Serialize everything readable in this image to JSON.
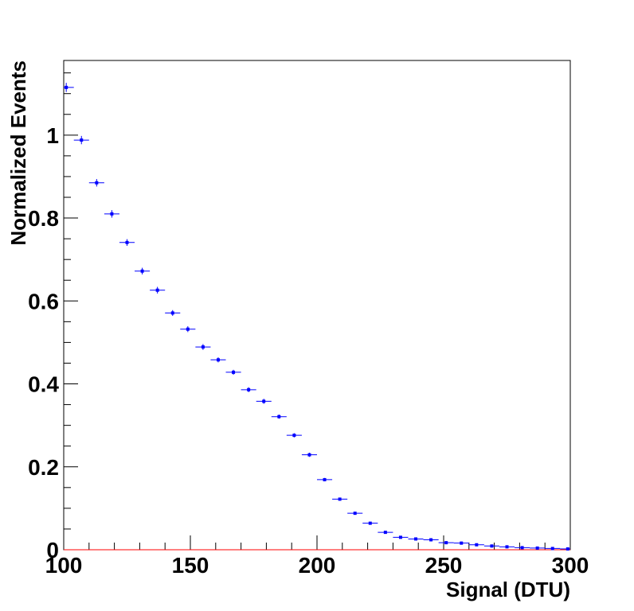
{
  "chart_data": {
    "type": "scatter",
    "title": "",
    "xlabel": "Signal (DTU)",
    "ylabel": "Normalized Events",
    "xlim": [
      100,
      300
    ],
    "ylim": [
      0,
      1.18
    ],
    "x_ticks": [
      "100",
      "150",
      "200",
      "250",
      "300"
    ],
    "y_ticks": [
      "0",
      "0.2",
      "0.4",
      "0.6",
      "0.8",
      "1"
    ],
    "grid": false,
    "legend": "none",
    "bin_width": 6,
    "colors": {
      "markers": "#0000ff",
      "baseline": "#ff0000",
      "frame": "#000000"
    },
    "series": [
      {
        "x": [
          101,
          107,
          113,
          119,
          125,
          131,
          137,
          143,
          149,
          155,
          161,
          167,
          173,
          179,
          185,
          191,
          197,
          203,
          209,
          215,
          221,
          227,
          233,
          239,
          245,
          251,
          257,
          263,
          269,
          275,
          281,
          287,
          293,
          299
        ],
        "y": [
          1.115,
          0.988,
          0.885,
          0.81,
          0.741,
          0.672,
          0.626,
          0.571,
          0.532,
          0.489,
          0.458,
          0.428,
          0.386,
          0.358,
          0.321,
          0.276,
          0.229,
          0.169,
          0.122,
          0.088,
          0.064,
          0.042,
          0.03,
          0.026,
          0.024,
          0.017,
          0.016,
          0.012,
          0.009,
          0.007,
          0.005,
          0.004,
          0.003,
          0.002
        ],
        "yerr": [
          0.011,
          0.01,
          0.009,
          0.009,
          0.008,
          0.008,
          0.008,
          0.007,
          0.007,
          0.007,
          0.006,
          0.006,
          0.006,
          0.006,
          0.005,
          0.005,
          0.005,
          0.004,
          0.003,
          0.003,
          0.003,
          0.002,
          0.002,
          0.002,
          0.002,
          0.002,
          0.002,
          0.001,
          0.001,
          0.001,
          0.001,
          0.001,
          0.001,
          0.001
        ]
      }
    ]
  }
}
